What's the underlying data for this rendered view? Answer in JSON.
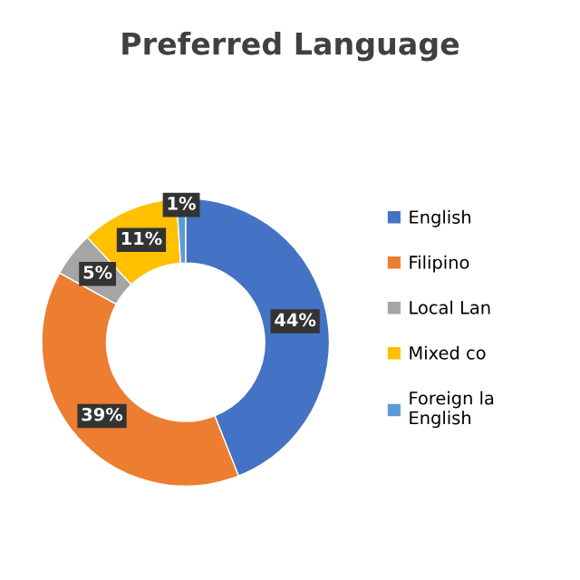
{
  "chart_data": {
    "type": "donut",
    "title": "Preferred Language",
    "categories": [
      "English",
      "Filipino",
      "Local Lan",
      "Mixed co",
      "Foreign la\nEnglish"
    ],
    "values": [
      44,
      39,
      5,
      11,
      1
    ],
    "colors": [
      "#4472c4",
      "#ed7d31",
      "#a5a5a5",
      "#ffc000",
      "#5b9bd5"
    ],
    "value_labels": [
      "44%",
      "39%",
      "5%",
      "11%",
      "1%"
    ],
    "legend": "right"
  }
}
